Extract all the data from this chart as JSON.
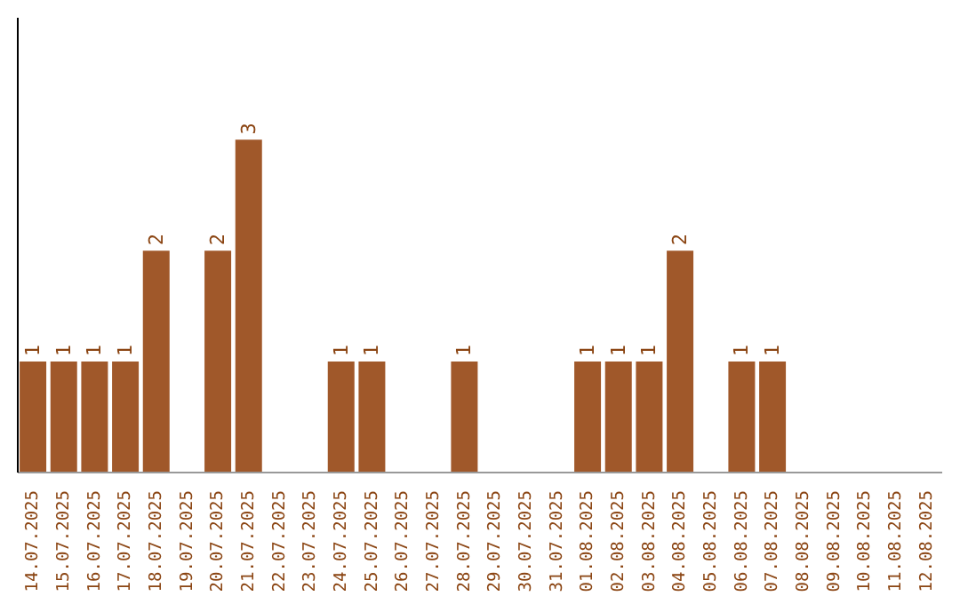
{
  "chart_data": {
    "type": "bar",
    "categories": [
      "14.07.2025",
      "15.07.2025",
      "16.07.2025",
      "17.07.2025",
      "18.07.2025",
      "19.07.2025",
      "20.07.2025",
      "21.07.2025",
      "22.07.2025",
      "23.07.2025",
      "24.07.2025",
      "25.07.2025",
      "26.07.2025",
      "27.07.2025",
      "28.07.2025",
      "29.07.2025",
      "30.07.2025",
      "31.07.2025",
      "01.08.2025",
      "02.08.2025",
      "03.08.2025",
      "04.08.2025",
      "05.08.2025",
      "06.08.2025",
      "07.08.2025",
      "08.08.2025",
      "09.08.2025",
      "10.08.2025",
      "11.08.2025",
      "12.08.2025"
    ],
    "values": [
      1,
      1,
      1,
      1,
      2,
      0,
      2,
      3,
      0,
      0,
      1,
      1,
      0,
      0,
      1,
      0,
      0,
      0,
      1,
      1,
      1,
      2,
      0,
      1,
      1,
      0,
      0,
      0,
      0,
      0
    ],
    "value_labels": [
      "1",
      "1",
      "1",
      "1",
      "2",
      null,
      "2",
      "3",
      null,
      null,
      "1",
      "1",
      null,
      null,
      "1",
      null,
      null,
      null,
      "1",
      "1",
      "1",
      "2",
      null,
      "1",
      "1",
      null,
      null,
      null,
      null,
      null
    ],
    "color": "#a0582a",
    "ylim": [
      0,
      4.1
    ],
    "tick_labels": "x",
    "grid": false
  }
}
